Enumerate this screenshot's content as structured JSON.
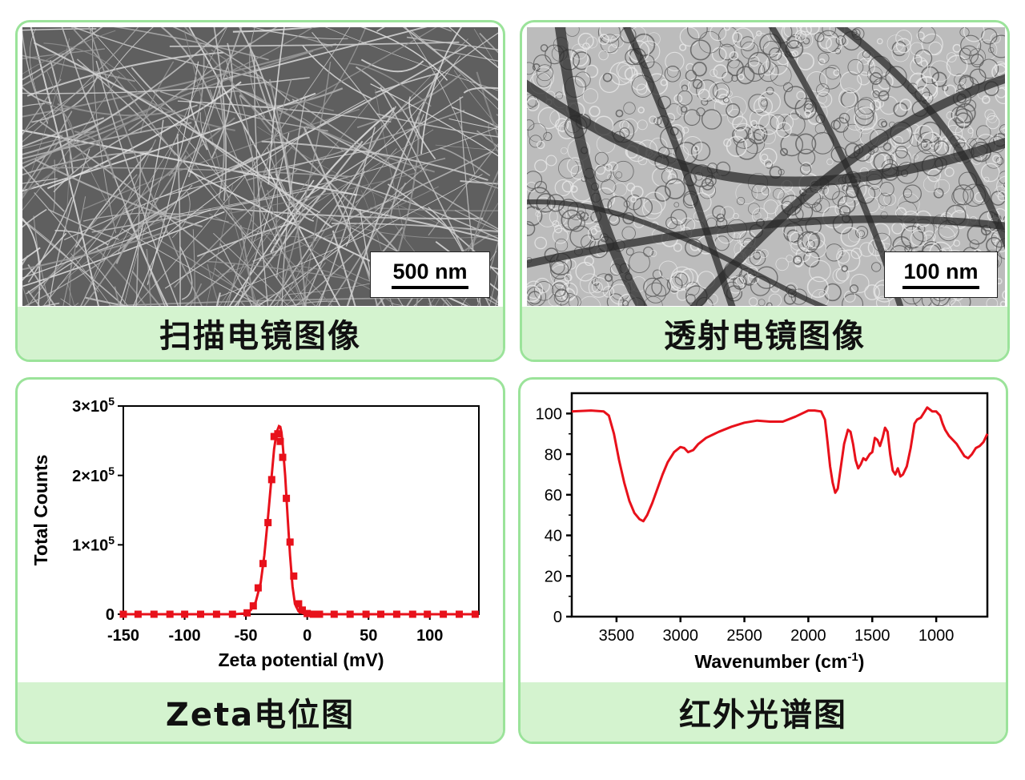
{
  "panels": {
    "sem": {
      "caption": "扫描电镜图像",
      "scale_label": "500 nm"
    },
    "tem": {
      "caption": "透射电镜图像",
      "scale_label": "100 nm"
    },
    "zeta": {
      "caption": "Zeta电位图"
    },
    "ir": {
      "caption": "红外光谱图"
    }
  },
  "colors": {
    "border": "#9be39a",
    "caption_bg": "#d4f3cf",
    "series": "#e8111b"
  },
  "chart_data": [
    {
      "type": "line",
      "panel": "zeta",
      "xlabel": "Zeta potential (mV)",
      "ylabel": "Total Counts",
      "xlim": [
        -150,
        140
      ],
      "ylim": [
        0,
        300000
      ],
      "xticks": [
        -150,
        -100,
        -50,
        0,
        50,
        100
      ],
      "yticks": [
        {
          "value": 0,
          "label": "0"
        },
        {
          "value": 100000,
          "label": "1×10",
          "exp": "5"
        },
        {
          "value": 200000,
          "label": "2×10",
          "exp": "5"
        },
        {
          "value": 300000,
          "label": "3×10",
          "exp": "5"
        }
      ],
      "series": [
        {
          "curve": {
            "x": [
              -150,
              -60,
              -52,
              -46,
              -42,
              -38,
              -35,
              -32,
              -29,
              -27,
              -25,
              -23,
              -22,
              -21,
              -20,
              -18,
              -16,
              -14,
              -12,
              -10,
              -7,
              -3,
              0,
              5,
              10,
              140
            ],
            "y": [
              0,
              0,
              1000,
              6000,
              18000,
              45000,
              85000,
              140000,
              200000,
              238000,
              262000,
              271000,
              270000,
              262000,
              245000,
              200000,
              140000,
              85000,
              40000,
              15000,
              4000,
              1000,
              0,
              0,
              0,
              0
            ]
          },
          "markers": {
            "x": [
              -150,
              -138,
              -125,
              -112,
              -100,
              -87,
              -74,
              -61,
              -49,
              -44,
              -40,
              -36,
              -32,
              -29,
              -27,
              -24,
              -22,
              -20,
              -17,
              -14,
              -11,
              -7,
              -4,
              0,
              5,
              10,
              22,
              35,
              48,
              60,
              73,
              86,
              98,
              111,
              124,
              137
            ],
            "y": [
              0,
              0,
              0,
              0,
              0,
              0,
              0,
              0,
              2000,
              12000,
              38000,
              73000,
              132000,
              194000,
              256000,
              260000,
              249000,
              226000,
              167000,
              104000,
              55000,
              15000,
              6000,
              1000,
              0,
              0,
              0,
              0,
              0,
              0,
              0,
              0,
              0,
              0,
              0,
              0
            ]
          }
        }
      ]
    },
    {
      "type": "line",
      "panel": "ir",
      "xlabel": "Wavenumber (cm",
      "xlabel_sup": "-1",
      "xlabel_end": ")",
      "xlim": [
        3850,
        600
      ],
      "ylim": [
        0,
        110
      ],
      "xticks": [
        3500,
        3000,
        2500,
        2000,
        1500,
        1000
      ],
      "yticks": [
        0,
        20,
        40,
        60,
        80,
        100
      ],
      "series": [
        {
          "x": [
            3850,
            3700,
            3600,
            3560,
            3520,
            3480,
            3440,
            3400,
            3360,
            3320,
            3290,
            3260,
            3220,
            3180,
            3140,
            3100,
            3050,
            3000,
            2970,
            2940,
            2900,
            2860,
            2800,
            2700,
            2600,
            2500,
            2400,
            2300,
            2200,
            2100,
            2000,
            1950,
            1900,
            1870,
            1850,
            1830,
            1810,
            1790,
            1770,
            1750,
            1720,
            1690,
            1670,
            1650,
            1630,
            1610,
            1590,
            1570,
            1550,
            1520,
            1500,
            1480,
            1460,
            1440,
            1420,
            1400,
            1380,
            1360,
            1340,
            1320,
            1300,
            1280,
            1260,
            1230,
            1200,
            1170,
            1150,
            1120,
            1090,
            1070,
            1050,
            1030,
            1000,
            970,
            950,
            930,
            900,
            870,
            840,
            810,
            780,
            750,
            720,
            690,
            660,
            630,
            600
          ],
          "y": [
            101,
            101.5,
            101,
            99,
            90,
            77,
            66,
            57,
            51,
            48,
            47,
            50,
            56,
            63,
            70,
            76,
            81,
            83.5,
            83,
            81,
            82,
            85,
            88,
            91,
            93.5,
            95.5,
            96.5,
            96,
            96,
            98.5,
            101.5,
            101.5,
            101,
            97,
            86,
            74,
            66,
            61,
            63,
            72,
            85,
            92,
            91,
            85,
            77,
            73,
            75,
            78,
            77,
            80,
            81,
            88,
            87,
            84,
            88,
            93,
            91,
            80,
            72,
            70,
            73,
            69,
            70,
            74,
            83,
            95,
            97,
            98,
            101,
            103,
            102,
            101,
            101,
            99,
            95,
            92,
            89,
            87,
            85,
            82,
            79,
            78,
            80,
            83,
            84,
            86,
            90
          ]
        }
      ]
    }
  ]
}
